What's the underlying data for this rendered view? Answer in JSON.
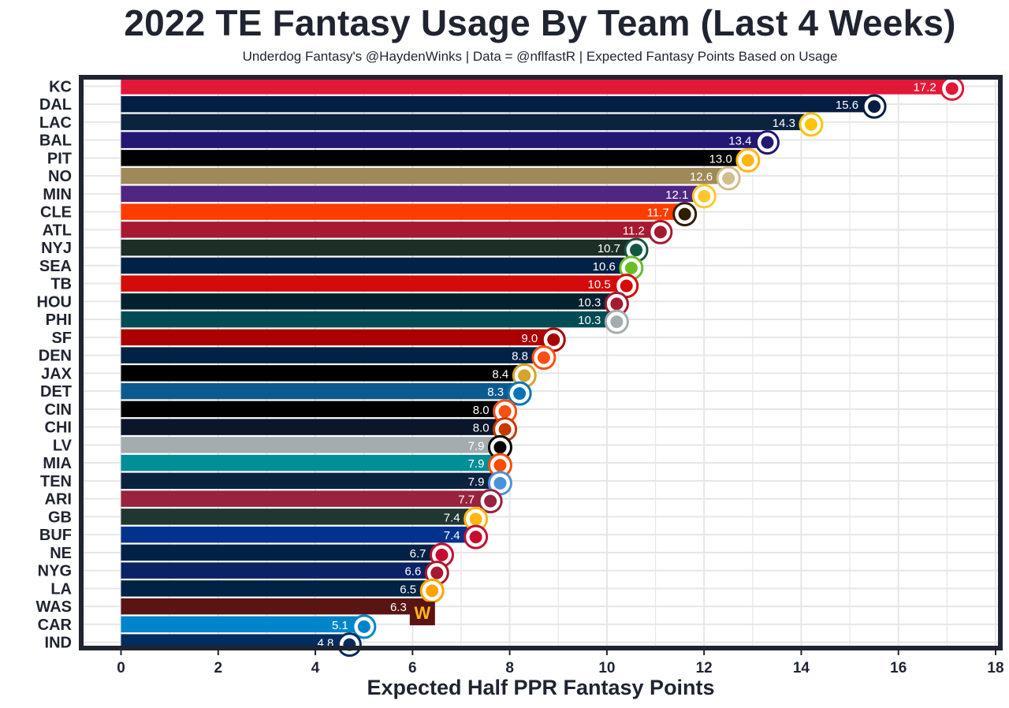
{
  "title": "2022 TE Fantasy Usage By Team (Last 4 Weeks)",
  "subtitle": "Underdog Fantasy's @HaydenWinks | Data = @nflfastR | Expected Fantasy Points Based on Usage",
  "chart_data": {
    "type": "bar",
    "orientation": "horizontal",
    "title": "2022 TE Fantasy Usage By Team (Last 4 Weeks)",
    "subtitle": "Underdog Fantasy's @HaydenWinks | Data = @nflfastR | Expected Fantasy Points Based on Usage",
    "xlabel": "Expected Half PPR Fantasy Points",
    "ylabel": "",
    "xlim": [
      0,
      18
    ],
    "xticks": [
      "0",
      "2",
      "4",
      "6",
      "8",
      "10",
      "12",
      "14",
      "16",
      "18"
    ],
    "grid": true,
    "categories": [
      "KC",
      "DAL",
      "LAC",
      "BAL",
      "PIT",
      "NO",
      "MIN",
      "CLE",
      "ATL",
      "NYJ",
      "SEA",
      "TB",
      "HOU",
      "PHI",
      "SF",
      "DEN",
      "JAX",
      "DET",
      "CIN",
      "CHI",
      "LV",
      "MIA",
      "TEN",
      "ARI",
      "GB",
      "BUF",
      "NE",
      "NYG",
      "LA",
      "WAS",
      "CAR",
      "IND"
    ],
    "values": [
      17.2,
      15.6,
      14.3,
      13.4,
      13.0,
      12.6,
      12.1,
      11.7,
      11.2,
      10.7,
      10.6,
      10.5,
      10.3,
      10.3,
      9.0,
      8.8,
      8.4,
      8.3,
      8.0,
      8.0,
      7.9,
      7.9,
      7.9,
      7.7,
      7.4,
      7.4,
      6.7,
      6.6,
      6.5,
      6.3,
      5.1,
      4.8
    ],
    "value_labels": [
      "17.2",
      "15.6",
      "14.3",
      "13.4",
      "13.0",
      "12.6",
      "12.1",
      "11.7",
      "11.2",
      "10.7",
      "10.6",
      "10.5",
      "10.3",
      "10.3",
      "9.0",
      "8.8",
      "8.4",
      "8.3",
      "8.0",
      "8.0",
      "7.9",
      "7.9",
      "7.9",
      "7.7",
      "7.4",
      "7.4",
      "6.7",
      "6.6",
      "6.5",
      "6.3",
      "5.1",
      "4.8"
    ],
    "bar_colors": [
      "#e31837",
      "#041e42",
      "#0c2340",
      "#241773",
      "#000000",
      "#9f8958",
      "#4f2683",
      "#ff3c00",
      "#a71930",
      "#1c2e25",
      "#002244",
      "#d50a0a",
      "#03202f",
      "#004c54",
      "#aa0000",
      "#002244",
      "#000000",
      "#0b5a8f",
      "#000000",
      "#0b162a",
      "#a5acaf",
      "#008e97",
      "#0c2340",
      "#97233f",
      "#203731",
      "#00338d",
      "#002244",
      "#0b2265",
      "#002244",
      "#5a1414",
      "#0085ca",
      "#002c5f"
    ],
    "logo_icons": [
      "kc-logo-icon",
      "dal-logo-icon",
      "lac-logo-icon",
      "bal-logo-icon",
      "pit-logo-icon",
      "no-logo-icon",
      "min-logo-icon",
      "cle-logo-icon",
      "atl-logo-icon",
      "nyj-logo-icon",
      "sea-logo-icon",
      "tb-logo-icon",
      "hou-logo-icon",
      "phi-logo-icon",
      "sf-logo-icon",
      "den-logo-icon",
      "jax-logo-icon",
      "det-logo-icon",
      "cin-logo-icon",
      "chi-logo-icon",
      "lv-logo-icon",
      "mia-logo-icon",
      "ten-logo-icon",
      "ari-logo-icon",
      "gb-logo-icon",
      "buf-logo-icon",
      "ne-logo-icon",
      "nyg-logo-icon",
      "la-logo-icon",
      "was-logo-icon",
      "car-logo-icon",
      "ind-logo-icon"
    ],
    "logo_colors": [
      "#e31837",
      "#041e42",
      "#ffc20e",
      "#241773",
      "#ffb612",
      "#d3bc8d",
      "#ffc62f",
      "#311d00",
      "#a71930",
      "#125740",
      "#69be28",
      "#d50a0a",
      "#a71930",
      "#a5acaf",
      "#aa0000",
      "#fb4f14",
      "#d7a22a",
      "#0076b6",
      "#fb4f14",
      "#c83803",
      "#000000",
      "#fc4c02",
      "#4b92db",
      "#97233f",
      "#ffb612",
      "#c60c30",
      "#c60c30",
      "#a71930",
      "#ffa300",
      "#ffb612",
      "#0085ca",
      "#002c5f"
    ],
    "logo_letters": [
      "",
      "",
      "",
      "",
      "",
      "",
      "",
      "",
      "",
      "",
      "",
      "",
      "",
      "",
      "",
      "",
      "",
      "",
      "",
      "",
      "",
      "",
      "",
      "",
      "",
      "",
      "",
      "",
      "",
      "W",
      "",
      ""
    ]
  },
  "style": {
    "frame_color": "#1f2430",
    "grid_color": "#e6e6e6",
    "text_color": "#1f2430",
    "value_label_color": "#ffffff"
  }
}
